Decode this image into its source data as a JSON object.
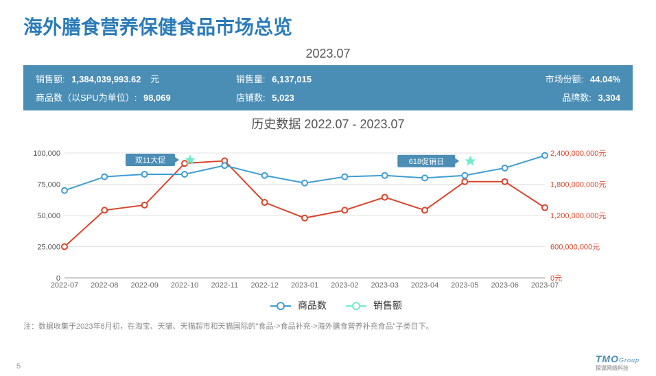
{
  "page": {
    "title": "海外膳食营养保健食品市场总览",
    "period_label": "2023.07",
    "history_label": "历史数据 2022.07 - 2023.07",
    "note": "注：数据收集于2023年8月初，在淘宝、天猫、天猫超市和天猫国际的\"食品->食品补充->海外膳食营养补充食品\"子类目下。",
    "page_number": "5",
    "logo_main": "TMO",
    "logo_suffix": "Group",
    "logo_sub": "探谋网络科技"
  },
  "stats": {
    "sales_amount_label": "销售额:",
    "sales_amount_value": "1,384,039,993.62",
    "sales_amount_unit": "元",
    "sales_qty_label": "销售量:",
    "sales_qty_value": "6,137,015",
    "share_label": "市场份额:",
    "share_value": "44.04%",
    "sku_label": "商品数（以SPU为单位）:",
    "sku_value": "98,069",
    "shops_label": "店铺数:",
    "shops_value": "5,023",
    "brands_label": "品牌数:",
    "brands_value": "3,304"
  },
  "chart": {
    "type": "dual-axis-line",
    "categories": [
      "2022-07",
      "2022-08",
      "2022-09",
      "2022-10",
      "2022-11",
      "2022-12",
      "2023-01",
      "2023-02",
      "2023-03",
      "2023-04",
      "2023-05",
      "2023-06",
      "2023-07"
    ],
    "series_left": {
      "name": "商品数",
      "color": "#3f9cd4",
      "values": [
        70000,
        81000,
        83000,
        83000,
        90000,
        82000,
        76000,
        81000,
        82000,
        80000,
        82000,
        88000,
        98000
      ]
    },
    "series_right": {
      "name": "销售额",
      "color": "#d9442a",
      "values": [
        600000000,
        1300000000,
        1400000000,
        2200000000,
        2250000000,
        1450000000,
        1150000000,
        1300000000,
        1550000000,
        1300000000,
        1850000000,
        1850000000,
        1350000000
      ]
    },
    "y_left": {
      "min": 0,
      "max": 100000,
      "step": 25000,
      "ticks": [
        "0",
        "25,000",
        "50,000",
        "75,000",
        "100,000"
      ]
    },
    "y_right": {
      "min": 0,
      "max": 2400000000,
      "step": 600000000,
      "ticks": [
        "0元",
        "600,000,000元",
        "1,200,000,000元",
        "1,800,000,000元",
        "2,400,000,000元"
      ]
    },
    "callouts": [
      {
        "index": 3,
        "text": "双11大促",
        "series": "left"
      },
      {
        "index": 10,
        "text": "618促销日",
        "series": "left"
      }
    ],
    "legend": {
      "left": "商品数",
      "right": "销售额"
    },
    "grid_color": "#e0e0e0",
    "background": "#ffffff",
    "marker_radius": 4,
    "line_width": 2
  }
}
